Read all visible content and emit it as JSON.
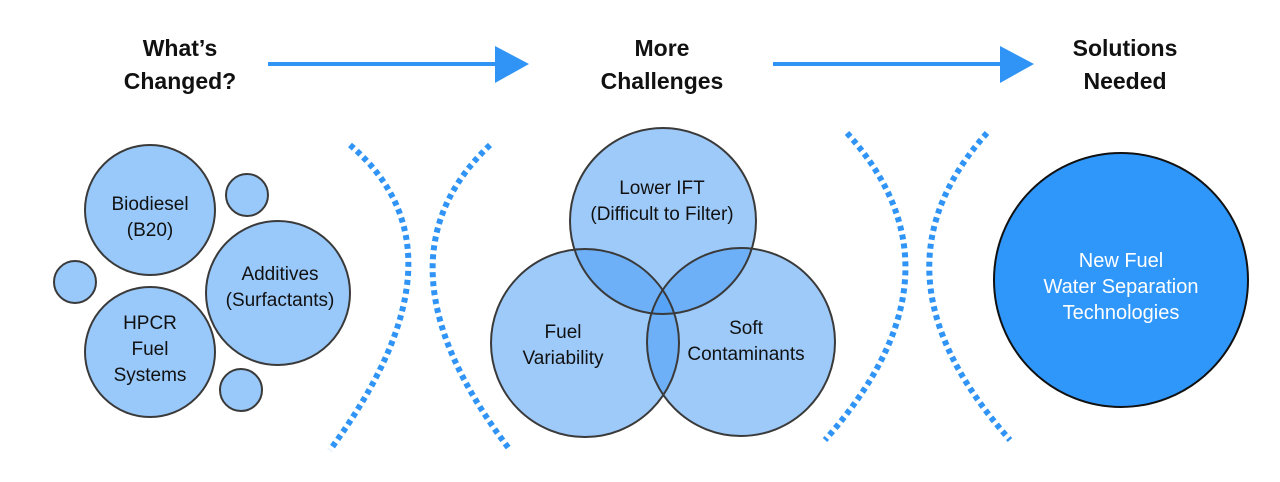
{
  "headings": {
    "changed": [
      "What’s",
      "Changed?"
    ],
    "challenges": [
      "More",
      "Challenges"
    ],
    "solutions": [
      "Solutions",
      "Needed"
    ]
  },
  "changed_items": {
    "biodiesel": [
      "Biodiesel",
      "(B20)"
    ],
    "additives": [
      "Additives",
      "(Surfactants)"
    ],
    "hpcr": [
      "HPCR",
      "Fuel",
      "Systems"
    ]
  },
  "challenges_items": {
    "lower_ift": [
      "Lower IFT",
      "(Difficult to Filter)"
    ],
    "fuel_variability": [
      "Fuel",
      "Variability"
    ],
    "soft_contaminants": [
      "Soft",
      "Contaminants"
    ]
  },
  "solution": [
    "New Fuel",
    "Water Separation",
    "Technologies"
  ],
  "colors": {
    "accent": "#2f94f5",
    "light_fill": "#99c9fa",
    "solution_fill": "#2f96fa",
    "outline": "#3a3a3a"
  }
}
